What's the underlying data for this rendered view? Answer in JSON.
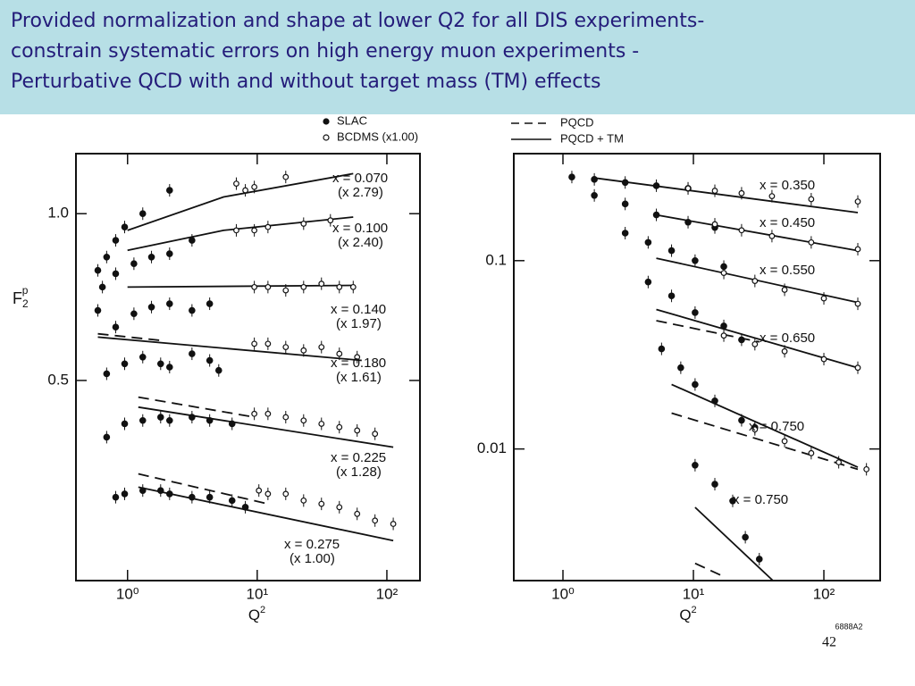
{
  "slide": {
    "title_lines": [
      "Provided normalization and shape at lower Q2 for all DIS experiments-",
      "constrain systematic errors on high energy muon experiments -",
      "Perturbative QCD with and without target mass (TM) effects"
    ],
    "page_number": "42",
    "figure_id": "6888A2"
  },
  "chart_data": [
    {
      "type": "scatter",
      "xlog": true,
      "ylog": false,
      "xlim": [
        0.4,
        180
      ],
      "ylim": [
        -0.1,
        1.18
      ],
      "xticks": [
        {
          "value": 1,
          "label": "10⁰"
        },
        {
          "value": 10,
          "label": "10¹"
        },
        {
          "value": 100,
          "label": "10²"
        }
      ],
      "yticks": [
        0.5,
        {
          "value": 1,
          "label": "1.0"
        }
      ],
      "x_label": {
        "base": "Q",
        "sup": "2"
      },
      "y_label": {
        "base": "F",
        "sub": "2",
        "sup": "p"
      },
      "legend": [
        {
          "label": "SLAC",
          "style": "filled"
        },
        {
          "label": "BCDMS (x1.00)",
          "style": "open"
        }
      ],
      "color": "#111111",
      "bins": [
        {
          "label": "x = 0.070",
          "scale": "(x 2.79)",
          "slac_x": [
            0.59,
            0.69,
            0.81,
            0.95,
            1.31,
            2.11
          ],
          "slac": [
            0.83,
            0.87,
            0.92,
            0.96,
            1.0,
            1.07
          ],
          "bcdms_x": [
            6.9,
            8.1,
            9.5,
            16.6
          ],
          "bcdms": [
            1.09,
            1.07,
            1.08,
            1.11
          ],
          "tm_x": [
            1,
            5.5,
            55
          ],
          "tm": [
            0.95,
            1.05,
            1.12
          ]
        },
        {
          "label": "x = 0.100",
          "scale": "(x 2.40)",
          "slac_x": [
            0.64,
            0.81,
            1.12,
            1.53,
            2.11,
            3.14
          ],
          "slac": [
            0.78,
            0.82,
            0.85,
            0.87,
            0.88,
            0.92
          ],
          "bcdms_x": [
            6.9,
            9.5,
            12.1,
            22.8,
            36.7
          ],
          "bcdms": [
            0.95,
            0.95,
            0.96,
            0.97,
            0.98
          ],
          "tm_x": [
            1,
            5.5,
            55
          ],
          "tm": [
            0.89,
            0.95,
            0.99
          ]
        },
        {
          "label": "x = 0.140",
          "scale": "(x 1.97)",
          "slac_x": [
            0.59,
            0.81,
            1.12,
            1.53,
            2.11,
            3.14,
            4.3
          ],
          "slac": [
            0.71,
            0.66,
            0.7,
            0.72,
            0.73,
            0.71,
            0.73
          ],
          "bcdms_x": [
            9.5,
            12.1,
            16.6,
            22.8,
            31.3,
            43,
            55
          ],
          "bcdms": [
            0.78,
            0.78,
            0.77,
            0.78,
            0.79,
            0.78,
            0.78
          ],
          "tm_x": [
            1,
            55
          ],
          "tm": [
            0.78,
            0.785
          ]
        },
        {
          "label": "x = 0.180",
          "scale": "(x 1.61)",
          "slac_x": [
            0.69,
            0.95,
            1.31,
            1.8,
            2.11,
            3.14,
            4.3,
            5.05
          ],
          "slac": [
            0.52,
            0.55,
            0.57,
            0.55,
            0.54,
            0.58,
            0.56,
            0.53
          ],
          "bcdms_x": [
            9.5,
            12.1,
            16.6,
            22.8,
            31.3,
            43,
            59
          ],
          "bcdms": [
            0.61,
            0.61,
            0.6,
            0.59,
            0.6,
            0.58,
            0.57
          ],
          "tm_x": [
            0.59,
            64
          ],
          "tm": [
            0.63,
            0.56
          ],
          "pqcd_x": [
            0.59,
            1.8
          ],
          "pqcd": [
            0.64,
            0.62
          ]
        },
        {
          "label": "x = 0.225",
          "scale": "(x 1.28)",
          "slac_x": [
            0.69,
            0.95,
            1.31,
            1.8,
            2.11,
            3.14,
            4.3,
            6.4
          ],
          "slac": [
            0.33,
            0.37,
            0.38,
            0.39,
            0.38,
            0.39,
            0.38,
            0.37
          ],
          "bcdms_x": [
            9.5,
            12.1,
            16.6,
            22.8,
            31.3,
            43,
            59,
            81
          ],
          "bcdms": [
            0.4,
            0.4,
            0.39,
            0.38,
            0.37,
            0.36,
            0.35,
            0.34
          ],
          "tm_x": [
            1.21,
            112
          ],
          "tm": [
            0.42,
            0.3
          ],
          "pqcd_x": [
            1.21,
            9.5
          ],
          "pqcd": [
            0.45,
            0.39
          ]
        },
        {
          "label": "x = 0.275",
          "scale": "(x 1.00)",
          "slac_x": [
            0.81,
            0.95,
            1.31,
            1.8,
            2.11,
            3.14,
            4.3,
            6.4,
            8.1
          ],
          "slac": [
            0.15,
            0.16,
            0.17,
            0.17,
            0.16,
            0.15,
            0.15,
            0.14,
            0.12
          ],
          "bcdms_x": [
            10.3,
            12.1,
            16.6,
            22.8,
            31.3,
            43,
            59,
            81,
            112
          ],
          "bcdms": [
            0.17,
            0.16,
            0.16,
            0.14,
            0.13,
            0.12,
            0.1,
            0.08,
            0.07
          ],
          "tm_x": [
            1.21,
            112
          ],
          "tm": [
            0.18,
            0.02
          ],
          "pqcd_x": [
            1.21,
            12.1
          ],
          "pqcd": [
            0.22,
            0.13
          ]
        }
      ]
    },
    {
      "type": "scatter",
      "xlog": true,
      "ylog": true,
      "xlim": [
        0.42,
        270
      ],
      "ylim": [
        0.002,
        0.37
      ],
      "xticks": [
        {
          "value": 1,
          "label": "10⁰"
        },
        {
          "value": 10,
          "label": "10¹"
        },
        {
          "value": 100,
          "label": "10²"
        }
      ],
      "yticks": [
        0.01,
        0.1
      ],
      "x_label": {
        "base": "Q",
        "sup": "2"
      },
      "legend": [
        {
          "label": "PQCD",
          "style": "dashed"
        },
        {
          "label": "PQCD + TM",
          "style": "solid"
        }
      ],
      "color": "#111111",
      "bins": [
        {
          "label": "x = 0.350",
          "slac_x": [
            1.17,
            1.74,
            3.0,
            5.2,
            9.1
          ],
          "slac": [
            0.278,
            0.27,
            0.26,
            0.25,
            0.242
          ],
          "bcdms_x": [
            9.1,
            14.6,
            23.4,
            40,
            80,
            182
          ],
          "bcdms": [
            0.242,
            0.235,
            0.228,
            0.22,
            0.212,
            0.206
          ],
          "tm_x": [
            1.74,
            182
          ],
          "tm": [
            0.275,
            0.18
          ]
        },
        {
          "label": "x = 0.450",
          "slac_x": [
            1.74,
            3.0,
            5.2,
            9.1,
            14.6
          ],
          "slac": [
            0.222,
            0.2,
            0.175,
            0.16,
            0.15
          ],
          "bcdms_x": [
            14.6,
            23.4,
            40,
            80,
            182
          ],
          "bcdms": [
            0.156,
            0.145,
            0.135,
            0.125,
            0.115
          ],
          "tm_x": [
            5.2,
            182
          ],
          "tm": [
            0.175,
            0.113
          ]
        },
        {
          "label": "x = 0.550",
          "slac_x": [
            3.0,
            4.5,
            6.8,
            10.3,
            17.1
          ],
          "slac": [
            0.14,
            0.125,
            0.113,
            0.1,
            0.093
          ],
          "bcdms_x": [
            17.1,
            29.6,
            50,
            100,
            182
          ],
          "bcdms": [
            0.086,
            0.078,
            0.07,
            0.063,
            0.059
          ],
          "tm_x": [
            5.2,
            182
          ],
          "tm": [
            0.103,
            0.06
          ]
        },
        {
          "label": "x = 0.650",
          "slac_x": [
            4.5,
            6.8,
            10.3,
            17.1,
            23.4
          ],
          "slac": [
            0.077,
            0.065,
            0.053,
            0.045,
            0.038
          ],
          "bcdms_x": [
            17.1,
            29.6,
            50,
            100,
            182
          ],
          "bcdms": [
            0.04,
            0.036,
            0.033,
            0.03,
            0.027
          ],
          "tm_x": [
            5.2,
            182
          ],
          "tm": [
            0.055,
            0.027
          ],
          "pqcd_x": [
            5.2,
            32.1
          ],
          "pqcd": [
            0.048,
            0.037
          ]
        },
        {
          "label": "x = 0.750",
          "slac_x": [
            5.7,
            8,
            10.3,
            14.6,
            23.4,
            29.6
          ],
          "slac": [
            0.034,
            0.027,
            0.022,
            0.018,
            0.0142,
            0.013
          ],
          "bcdms_x": [
            29.6,
            50,
            80,
            130,
            212
          ],
          "bcdms": [
            0.0127,
            0.011,
            0.0095,
            0.0085,
            0.0078
          ],
          "tm_x": [
            6.8,
            182
          ],
          "tm": [
            0.022,
            0.008
          ],
          "pqcd_x": [
            6.8,
            182
          ],
          "pqcd": [
            0.0155,
            0.0078
          ]
        },
        {
          "label": "x = 0.750",
          "slac_x": [
            10.3,
            14.6,
            20,
            25,
            32
          ],
          "slac": [
            0.0082,
            0.0065,
            0.0053,
            0.0034,
            0.0026
          ],
          "tm_x": [
            10.3,
            40.7
          ],
          "tm": [
            0.0049,
            0.002
          ],
          "pqcd_x": [
            10.3,
            17.1
          ],
          "pqcd": [
            0.00247,
            0.0021
          ]
        }
      ]
    }
  ]
}
